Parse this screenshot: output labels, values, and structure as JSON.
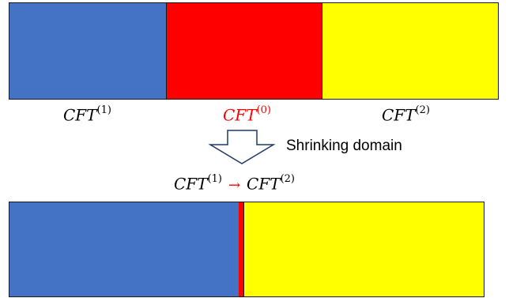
{
  "top_bar": {
    "segments": [
      {
        "color": "#4472c4",
        "base": "CFT",
        "sup": "(1)"
      },
      {
        "color": "#ff0000",
        "base": "CFT",
        "sup": "(0)"
      },
      {
        "color": "#ffff00",
        "base": "CFT",
        "sup": "(2)"
      }
    ]
  },
  "arrow": {
    "caption": "Shrinking domain"
  },
  "transition": {
    "left_base": "CFT",
    "left_sup": "(1)",
    "arrow_symbol": "→",
    "right_base": "CFT",
    "right_sup": "(2)"
  },
  "bottom_bar": {
    "colors": [
      "#4472c4",
      "#ff0000",
      "#ffff00"
    ]
  }
}
